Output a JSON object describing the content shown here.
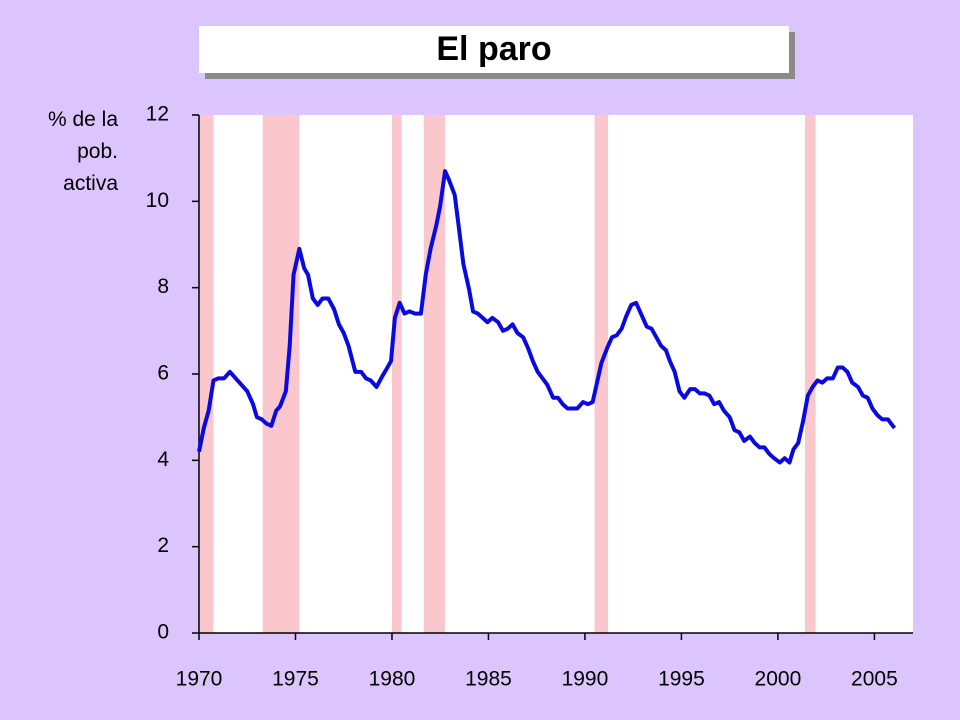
{
  "chart_data": {
    "type": "line",
    "title": "El paro",
    "y_label": "% de la pob. activa",
    "color": "#0a0ae0",
    "recession_color": "#f9c7cc",
    "recessions": [
      [
        1970.0,
        1970.75
      ],
      [
        1973.3,
        1975.2
      ],
      [
        1980.0,
        1980.5
      ],
      [
        1981.65,
        1982.75
      ],
      [
        1990.5,
        1991.2
      ],
      [
        2001.4,
        2001.95
      ]
    ],
    "x": [
      1970.0,
      1970.25,
      1970.5,
      1970.75,
      1971.0,
      1971.3,
      1971.6,
      1971.9,
      1972.2,
      1972.5,
      1972.8,
      1973.0,
      1973.25,
      1973.5,
      1973.75,
      1974.0,
      1974.2,
      1974.5,
      1974.7,
      1974.9,
      1975.2,
      1975.45,
      1975.65,
      1975.9,
      1976.15,
      1976.4,
      1976.7,
      1977.0,
      1977.25,
      1977.5,
      1977.75,
      1978.1,
      1978.4,
      1978.65,
      1978.9,
      1979.2,
      1979.5,
      1979.7,
      1979.95,
      1980.15,
      1980.4,
      1980.65,
      1980.9,
      1981.2,
      1981.5,
      1981.75,
      1982.0,
      1982.3,
      1982.5,
      1982.75,
      1982.95,
      1983.25,
      1983.45,
      1983.7,
      1984.0,
      1984.2,
      1984.45,
      1984.7,
      1984.95,
      1985.2,
      1985.5,
      1985.75,
      1986.0,
      1986.25,
      1986.5,
      1986.8,
      1987.05,
      1987.3,
      1987.55,
      1987.8,
      1988.05,
      1988.35,
      1988.6,
      1988.85,
      1989.1,
      1989.35,
      1989.6,
      1989.9,
      1990.15,
      1990.4,
      1990.6,
      1990.85,
      1991.15,
      1991.4,
      1991.65,
      1991.9,
      1992.15,
      1992.4,
      1992.65,
      1992.95,
      1993.2,
      1993.45,
      1993.7,
      1993.95,
      1994.2,
      1994.4,
      1994.65,
      1994.9,
      1995.15,
      1995.45,
      1995.7,
      1995.95,
      1996.2,
      1996.45,
      1996.7,
      1996.95,
      1997.2,
      1997.5,
      1997.75,
      1998.0,
      1998.25,
      1998.55,
      1998.8,
      1999.05,
      1999.3,
      1999.55,
      1999.8,
      2000.1,
      2000.35,
      2000.6,
      2000.8,
      2001.05,
      2001.3,
      2001.55,
      2001.8,
      2002.05,
      2002.3,
      2002.55,
      2002.85,
      2003.1,
      2003.35,
      2003.6,
      2003.85,
      2004.15,
      2004.4,
      2004.65,
      2004.9,
      2005.15,
      2005.4,
      2005.7,
      2005.95,
      2006.05
    ],
    "values": [
      4.2,
      4.75,
      5.15,
      5.85,
      5.9,
      5.9,
      6.05,
      5.9,
      5.75,
      5.6,
      5.3,
      5.0,
      4.95,
      4.85,
      4.8,
      5.15,
      5.25,
      5.6,
      6.65,
      8.3,
      8.9,
      8.45,
      8.3,
      7.75,
      7.6,
      7.75,
      7.75,
      7.5,
      7.15,
      6.95,
      6.65,
      6.05,
      6.05,
      5.9,
      5.85,
      5.7,
      5.95,
      6.1,
      6.3,
      7.3,
      7.65,
      7.4,
      7.45,
      7.4,
      7.4,
      8.3,
      8.9,
      9.45,
      9.9,
      10.7,
      10.5,
      10.15,
      9.45,
      8.55,
      7.95,
      7.45,
      7.4,
      7.3,
      7.2,
      7.3,
      7.2,
      7.0,
      7.05,
      7.15,
      6.95,
      6.85,
      6.6,
      6.3,
      6.05,
      5.9,
      5.75,
      5.45,
      5.45,
      5.3,
      5.2,
      5.2,
      5.2,
      5.35,
      5.3,
      5.35,
      5.75,
      6.25,
      6.6,
      6.85,
      6.9,
      7.05,
      7.35,
      7.6,
      7.65,
      7.35,
      7.1,
      7.05,
      6.85,
      6.65,
      6.55,
      6.3,
      6.05,
      5.6,
      5.45,
      5.65,
      5.65,
      5.55,
      5.55,
      5.5,
      5.3,
      5.35,
      5.15,
      5.0,
      4.7,
      4.65,
      4.45,
      4.55,
      4.4,
      4.3,
      4.3,
      4.15,
      4.05,
      3.95,
      4.05,
      3.95,
      4.25,
      4.4,
      4.9,
      5.5,
      5.7,
      5.85,
      5.8,
      5.9,
      5.9,
      6.15,
      6.15,
      6.05,
      5.8,
      5.7,
      5.5,
      5.45,
      5.2,
      5.05,
      4.95,
      4.95,
      4.8,
      4.75
    ],
    "xlim": [
      1970,
      2007
    ],
    "ylim": [
      0,
      12
    ],
    "xticks": [
      1970,
      1975,
      1980,
      1985,
      1990,
      1995,
      2000,
      2005
    ],
    "yticks": [
      0,
      2,
      4,
      6,
      8,
      10,
      12
    ]
  }
}
